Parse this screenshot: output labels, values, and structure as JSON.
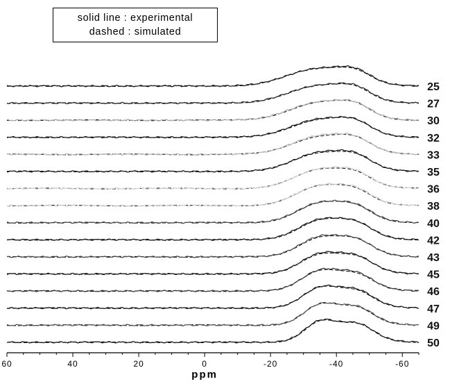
{
  "legend": {
    "solid_label": "solid line : experimental",
    "dashed_label": "dashed : simulated"
  },
  "chart_data": {
    "type": "line",
    "title": "",
    "xlabel": "ppm",
    "ylabel": "",
    "xlim": [
      60,
      -65
    ],
    "x_reversed": true,
    "x_ticks": [
      60,
      40,
      20,
      0,
      -20,
      -40,
      -60
    ],
    "x_tick_labels": [
      "60",
      "40",
      "20",
      "0",
      "-20",
      "-40",
      "-60"
    ],
    "grid": false,
    "legend_position": "top-left",
    "series_description_keys": [
      "experimental (solid)",
      "simulated (dashed)"
    ],
    "stacked_traces": [
      {
        "label": "25",
        "color": "#1a1a1a",
        "shoulder": 0.55,
        "dip": 0.62,
        "peak": 0.95,
        "peak_center": -33.5,
        "peak_width": 9.0
      },
      {
        "label": "27",
        "color": "#2a2a2a",
        "shoulder": 0.55,
        "dip": 0.6,
        "peak": 0.95,
        "peak_center": -33.8,
        "peak_width": 8.8
      },
      {
        "label": "30",
        "color": "#a8a8a8",
        "shoulder": 0.56,
        "dip": 0.6,
        "peak": 0.97,
        "peak_center": -34.0,
        "peak_width": 8.6
      },
      {
        "label": "32",
        "color": "#1a1a1a",
        "shoulder": 0.57,
        "dip": 0.6,
        "peak": 0.98,
        "peak_center": -34.1,
        "peak_width": 8.3
      },
      {
        "label": "33",
        "color": "#b8b8b8",
        "shoulder": 0.58,
        "dip": 0.58,
        "peak": 1.0,
        "peak_center": -34.3,
        "peak_width": 8.1
      },
      {
        "label": "35",
        "color": "#1a1a1a",
        "shoulder": 0.6,
        "dip": 0.55,
        "peak": 1.03,
        "peak_center": -34.4,
        "peak_width": 7.8
      },
      {
        "label": "36",
        "color": "#d2d2d2",
        "shoulder": 0.61,
        "dip": 0.53,
        "peak": 1.05,
        "peak_center": -34.5,
        "peak_width": 7.5
      },
      {
        "label": "38",
        "color": "#cccccc",
        "shoulder": 0.62,
        "dip": 0.5,
        "peak": 1.07,
        "peak_center": -34.6,
        "peak_width": 7.2
      },
      {
        "label": "40",
        "color": "#4a4a4a",
        "shoulder": 0.64,
        "dip": 0.48,
        "peak": 1.09,
        "peak_center": -34.7,
        "peak_width": 6.9
      },
      {
        "label": "42",
        "color": "#1a1a1a",
        "shoulder": 0.66,
        "dip": 0.45,
        "peak": 1.11,
        "peak_center": -34.8,
        "peak_width": 6.6
      },
      {
        "label": "43",
        "color": "#4a4a4a",
        "shoulder": 0.68,
        "dip": 0.42,
        "peak": 1.13,
        "peak_center": -34.8,
        "peak_width": 6.3
      },
      {
        "label": "45",
        "color": "#1a1a1a",
        "shoulder": 0.7,
        "dip": 0.38,
        "peak": 1.15,
        "peak_center": -34.9,
        "peak_width": 6.0
      },
      {
        "label": "46",
        "color": "#3a3a3a",
        "shoulder": 0.72,
        "dip": 0.34,
        "peak": 1.18,
        "peak_center": -34.9,
        "peak_width": 5.7
      },
      {
        "label": "47",
        "color": "#1a1a1a",
        "shoulder": 0.74,
        "dip": 0.3,
        "peak": 1.2,
        "peak_center": -35.0,
        "peak_width": 5.4
      },
      {
        "label": "49",
        "color": "#555555",
        "shoulder": 0.76,
        "dip": 0.25,
        "peak": 1.22,
        "peak_center": -35.0,
        "peak_width": 5.1
      },
      {
        "label": "50",
        "color": "#1a1a1a",
        "shoulder": 0.78,
        "dip": 0.2,
        "peak": 1.25,
        "peak_center": -35.0,
        "peak_width": 4.8
      }
    ]
  }
}
